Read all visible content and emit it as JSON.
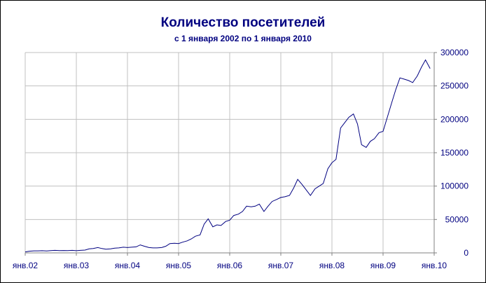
{
  "chart_data": {
    "type": "line",
    "title": "Количество посетителей",
    "subtitle": "с 1 января 2002 по 1 января 2010",
    "xlabel": "",
    "ylabel": "",
    "x_tick_labels": [
      "янв.02",
      "янв.03",
      "янв.04",
      "янв.05",
      "янв.06",
      "янв.07",
      "янв.08",
      "янв.09",
      "янв.10"
    ],
    "y_tick_labels": [
      "0",
      "50000",
      "100000",
      "150000",
      "200000",
      "250000",
      "300000"
    ],
    "ylim": [
      0,
      300000
    ],
    "xlim": [
      2002.0,
      2010.0
    ],
    "grid": true,
    "legend": "none",
    "colors": {
      "line": "#000080",
      "grid": "#c0c0c0",
      "text": "#000080"
    },
    "series": [
      {
        "x": [
          2002.0,
          2002.08,
          2002.17,
          2002.25,
          2002.33,
          2002.42,
          2002.5,
          2002.58,
          2002.67,
          2002.75,
          2002.83,
          2002.92,
          2003.0,
          2003.08,
          2003.17,
          2003.25,
          2003.33,
          2003.42,
          2003.5,
          2003.58,
          2003.67,
          2003.75,
          2003.83,
          2003.92,
          2004.0,
          2004.08,
          2004.17,
          2004.25,
          2004.33,
          2004.42,
          2004.5,
          2004.58,
          2004.67,
          2004.75,
          2004.83,
          2004.92,
          2005.0,
          2005.08,
          2005.17,
          2005.25,
          2005.33,
          2005.42,
          2005.5,
          2005.58,
          2005.67,
          2005.75,
          2005.83,
          2005.92,
          2006.0,
          2006.08,
          2006.17,
          2006.25,
          2006.33,
          2006.42,
          2006.5,
          2006.58,
          2006.67,
          2006.75,
          2006.83,
          2006.92,
          2007.0,
          2007.08,
          2007.17,
          2007.25,
          2007.33,
          2007.42,
          2007.5,
          2007.58,
          2007.67,
          2007.75,
          2007.83,
          2007.92,
          2008.0,
          2008.08,
          2008.17,
          2008.25,
          2008.33,
          2008.42,
          2008.5,
          2008.58,
          2008.67,
          2008.75,
          2008.83,
          2008.92,
          2009.0,
          2009.08,
          2009.17,
          2009.25,
          2009.33,
          2009.42,
          2009.5,
          2009.58,
          2009.67,
          2009.75,
          2009.83,
          2009.92
        ],
        "y": [
          1500,
          2500,
          3000,
          3000,
          3200,
          2800,
          3500,
          3800,
          3500,
          3600,
          3400,
          3800,
          3200,
          3800,
          4200,
          6000,
          6500,
          8000,
          6500,
          5500,
          6000,
          7000,
          7500,
          8500,
          8000,
          8500,
          9000,
          12000,
          10000,
          8000,
          7500,
          7500,
          8000,
          10000,
          14000,
          14500,
          14000,
          16000,
          18000,
          21000,
          25000,
          27000,
          43000,
          51000,
          39000,
          42000,
          41000,
          47000,
          49000,
          56000,
          58000,
          62000,
          70000,
          69000,
          70000,
          73000,
          62000,
          70000,
          77000,
          80000,
          83000,
          84000,
          86000,
          97000,
          110000,
          102000,
          94000,
          86000,
          96000,
          100000,
          104000,
          126000,
          135000,
          140000,
          187000,
          195000,
          203000,
          208000,
          193000,
          162000,
          158000,
          167000,
          171000,
          180000,
          182000,
          202000,
          225000,
          245000,
          262000,
          260000,
          258000,
          255000,
          265000,
          278000,
          289000,
          276000
        ]
      }
    ]
  }
}
